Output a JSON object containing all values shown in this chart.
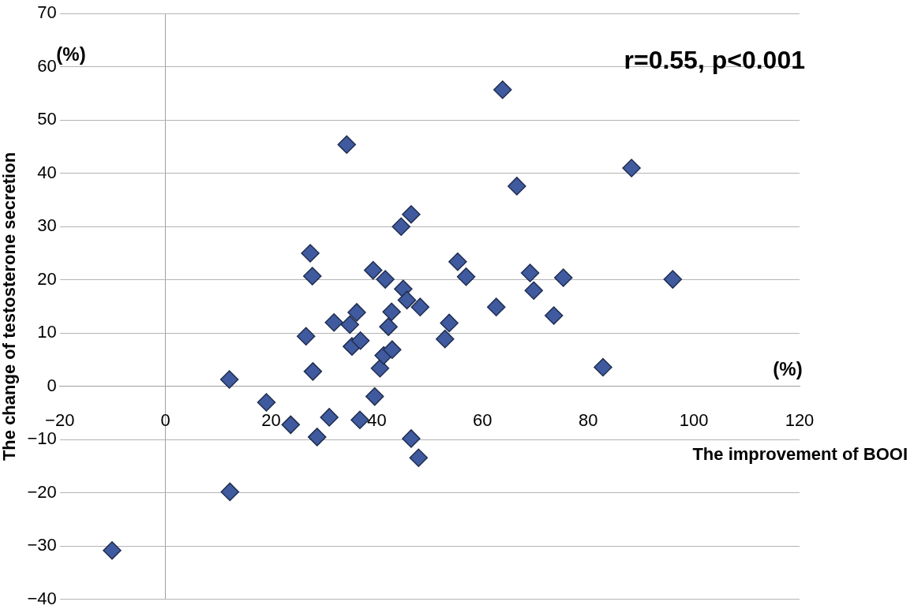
{
  "chart_data": {
    "type": "scatter",
    "xlabel": "The improvement of BOOI",
    "ylabel": "The change of testosterone secretion",
    "annotations": [
      "(%)",
      "(%)",
      "r=0.55, p<0.001"
    ],
    "xlim": [
      -20,
      120
    ],
    "xticks": [
      -20,
      0,
      20,
      40,
      60,
      80,
      100,
      120
    ],
    "ylim": [
      -40,
      70
    ],
    "yticks": [
      -40,
      -30,
      -20,
      -10,
      0,
      10,
      20,
      30,
      40,
      50,
      60,
      70
    ],
    "grid": "y",
    "marker": "diamond",
    "legend": false,
    "series": [
      {
        "color": "#3f5a9e",
        "x": [
          -10.1,
          12.2,
          12.1,
          19.1,
          23.7,
          26.6,
          27.4,
          27.8,
          27.9,
          28.7,
          31.0,
          31.9,
          34.3,
          34.9,
          35.3,
          36.2,
          36.9,
          36.8,
          39.3,
          39.6,
          40.6,
          41.3,
          41.6,
          42.2,
          42.8,
          42.9,
          44.6,
          45.0,
          45.7,
          46.5,
          46.5,
          47.9,
          48.2,
          52.9,
          53.7,
          55.3,
          56.9,
          62.6,
          63.8,
          66.5,
          69.0,
          69.7,
          73.5,
          75.3,
          82.8,
          88.2,
          96.0
        ],
        "values": [
          -30.8,
          -19.8,
          1.3,
          -3.0,
          -7.2,
          9.4,
          25.0,
          20.7,
          2.8,
          -9.5,
          -5.8,
          12.0,
          45.4,
          11.6,
          7.5,
          13.9,
          8.6,
          -6.3,
          21.8,
          -1.9,
          3.4,
          5.8,
          20.1,
          11.2,
          14.0,
          6.9,
          30.0,
          18.3,
          16.2,
          32.3,
          -9.8,
          -13.4,
          14.9,
          8.9,
          11.9,
          23.4,
          20.6,
          14.9,
          55.7,
          37.6,
          21.3,
          18.0,
          13.3,
          20.4,
          3.6,
          41.0,
          20.1
        ]
      }
    ]
  }
}
